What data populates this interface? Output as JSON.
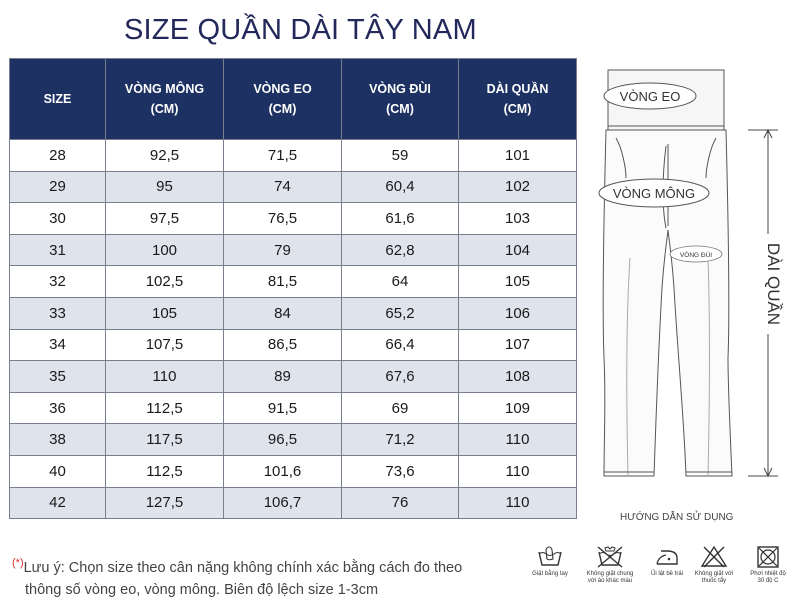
{
  "title": "SIZE QUẦN DÀI TÂY NAM",
  "table": {
    "headers": [
      [
        "SIZE"
      ],
      [
        "VÒNG MÔNG",
        "(CM)"
      ],
      [
        "VÒNG EO",
        "(CM)"
      ],
      [
        "VÒNG ĐÙI",
        "(CM)"
      ],
      [
        "DÀI QUẦN",
        "(CM)"
      ]
    ],
    "rows": [
      [
        "28",
        "92,5",
        "71,5",
        "59",
        "101"
      ],
      [
        "29",
        "95",
        "74",
        "60,4",
        "102"
      ],
      [
        "30",
        "97,5",
        "76,5",
        "61,6",
        "103"
      ],
      [
        "31",
        "100",
        "79",
        "62,8",
        "104"
      ],
      [
        "32",
        "102,5",
        "81,5",
        "64",
        "105"
      ],
      [
        "33",
        "105",
        "84",
        "65,2",
        "106"
      ],
      [
        "34",
        "107,5",
        "86,5",
        "66,4",
        "107"
      ],
      [
        "35",
        "110",
        "89",
        "67,6",
        "108"
      ],
      [
        "36",
        "112,5",
        "91,5",
        "69",
        "109"
      ],
      [
        "38",
        "117,5",
        "96,5",
        "71,2",
        "110"
      ],
      [
        "40",
        "112,5",
        "101,6",
        "73,6",
        "110"
      ],
      [
        "42",
        "127,5",
        "106,7",
        "76",
        "110"
      ]
    ],
    "header_color": "#1d3263",
    "stripe_color": "#dfe3ec"
  },
  "diagram": {
    "waist_label": "VÒNG EO",
    "hip_label": "VÒNG MÔNG",
    "thigh_label": "VÒNG ĐÙI",
    "length_label": "DÀI QUẦN",
    "usage_guide": "HƯỚNG DẪN SỬ DỤNG"
  },
  "note": {
    "marker": "(*)",
    "line1": "Lưu ý: Chọn size theo cân nặng không chính xác bằng cách đo theo",
    "line2": "thông số vòng eo, vòng mông. Biên độ lệch size 1-3cm"
  },
  "care_icons": [
    {
      "icon": "hand-wash-icon",
      "lines": [
        "Giặt bằng tay"
      ]
    },
    {
      "icon": "no-wash-with-others-icon",
      "lines": [
        "Không giặt chung",
        "với áo khác màu"
      ]
    },
    {
      "icon": "iron-low-icon",
      "lines": [
        "Ủi lật bề trái"
      ]
    },
    {
      "icon": "no-bleach-icon",
      "lines": [
        "Không giặt với",
        "thuốc tẩy"
      ]
    },
    {
      "icon": "dry-shade-icon",
      "lines": [
        "Phơi nhiệt độ",
        "30 độ C"
      ]
    }
  ]
}
